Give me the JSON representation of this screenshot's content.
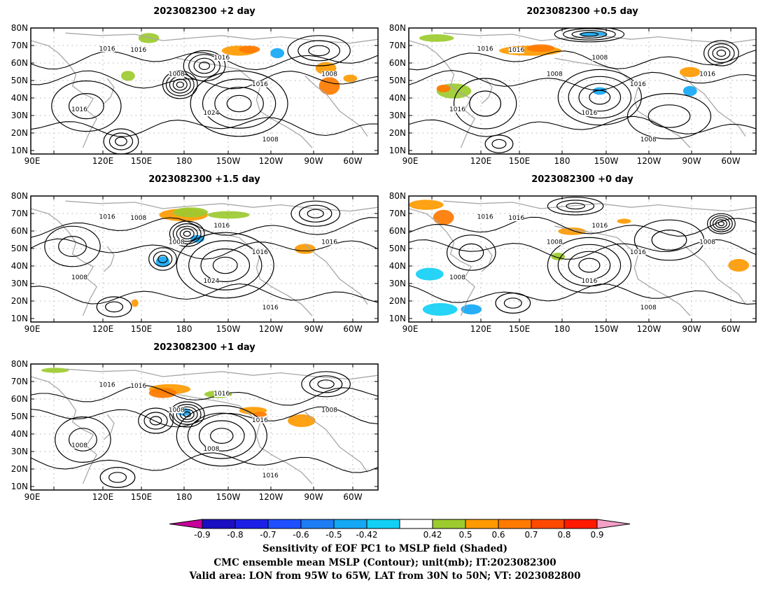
{
  "panels": [
    {
      "title": "2023082300  +2 day",
      "variant": 0
    },
    {
      "title": "2023082300  +0.5 day",
      "variant": 1
    },
    {
      "title": "2023082300  +1.5 day",
      "variant": 2
    },
    {
      "title": "2023082300  +0 day",
      "variant": 3
    },
    {
      "title": "2023082300  +1 day",
      "variant": 4
    }
  ],
  "axes": {
    "lat_labels": [
      "80N",
      "70N",
      "60N",
      "50N",
      "40N",
      "30N",
      "20N",
      "10N"
    ],
    "lon_labels": [
      "90E",
      "120E",
      "150E",
      "180",
      "150W",
      "120W",
      "90W",
      "60W"
    ]
  },
  "colorbar": {
    "labels": [
      "-0.9",
      "-0.8",
      "-0.7",
      "-0.6",
      "-0.5",
      "-0.42",
      "0.42",
      "0.5",
      "0.6",
      "0.7",
      "0.8",
      "0.9"
    ],
    "colors": [
      "#c8009a",
      "#1a0fc2",
      "#1c1fe6",
      "#1e50ff",
      "#1e7df4",
      "#14a8f5",
      "#12d0f5",
      "#ffffff",
      "#9ccb2e",
      "#ff9a00",
      "#ff7a00",
      "#ff4a00",
      "#ff1a00",
      "#f5a0c8"
    ]
  },
  "caption": {
    "line1": "Sensitivity of EOF PC1 to MSLP field (Shaded)",
    "line2": "CMC ensemble mean MSLP (Contour); unit(mb); IT:2023082300",
    "line3": "Valid area: LON from 95W to 65W, LAT from 30N to 50N; VT: 2023082800"
  },
  "contour_labels": [
    [
      "1016",
      "1016",
      "1008",
      "1016",
      "1016",
      "1016",
      "1024",
      "1008",
      "1008"
    ],
    [
      "1016",
      "1016",
      "1008",
      "1008",
      "1016",
      "1016",
      "1016",
      "1008",
      "1016"
    ],
    [
      "1016",
      "1008",
      "1008",
      "1016",
      "1016",
      "1008",
      "1024",
      "1016",
      "1016"
    ],
    [
      "1016",
      "1016",
      "1008",
      "1016",
      "1016",
      "1008",
      "1016",
      "1008",
      "1008"
    ],
    [
      "1016",
      "1016",
      "1008",
      "1016",
      "1016",
      "1008",
      "1008",
      "1016",
      "1008"
    ]
  ]
}
